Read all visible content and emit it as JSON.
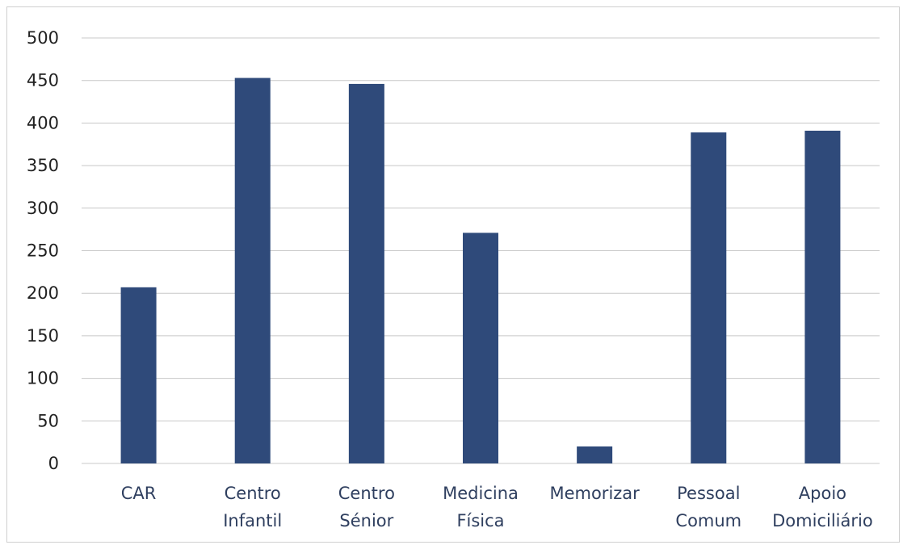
{
  "chart_data": {
    "type": "bar",
    "title": "",
    "xlabel": "",
    "ylabel": "",
    "categories": [
      [
        "CAR"
      ],
      [
        "Centro",
        "Infantil"
      ],
      [
        "Centro",
        "Sénior"
      ],
      [
        "Medicina",
        "Física"
      ],
      [
        "Memorizar"
      ],
      [
        "Pessoal",
        "Comum"
      ],
      [
        "Apoio",
        "Domiciliário"
      ]
    ],
    "values": [
      207,
      453,
      446,
      271,
      20,
      389,
      391
    ],
    "ylim": [
      0,
      500
    ],
    "yticks": [
      "0",
      "50",
      "100",
      "150",
      "200",
      "250",
      "300",
      "350",
      "400",
      "450",
      "500"
    ],
    "grid": true,
    "legend": "none",
    "colors": {
      "bar": "#2f4a7a",
      "grid": "#c8c8c8",
      "axis_text": "#222222",
      "category_text": "#2f3f5f"
    }
  }
}
